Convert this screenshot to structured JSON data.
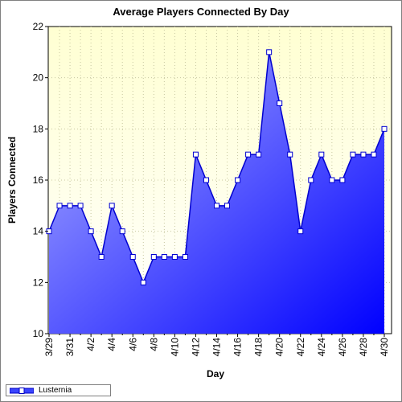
{
  "chart_data": {
    "type": "area",
    "title": "Average Players Connected By Day",
    "xlabel": "Day",
    "ylabel": "Players Connected",
    "ylim": [
      10,
      22
    ],
    "yticks": [
      10,
      12,
      14,
      16,
      18,
      20,
      22
    ],
    "grid": true,
    "legend_position": "bottom-left",
    "categories": [
      "3/29",
      "3/30",
      "3/31",
      "4/1",
      "4/2",
      "4/3",
      "4/4",
      "4/5",
      "4/6",
      "4/7",
      "4/8",
      "4/9",
      "4/10",
      "4/11",
      "4/12",
      "4/13",
      "4/14",
      "4/15",
      "4/16",
      "4/17",
      "4/18",
      "4/19",
      "4/20",
      "4/21",
      "4/22",
      "4/23",
      "4/24",
      "4/25",
      "4/26",
      "4/27",
      "4/28",
      "4/29",
      "4/30"
    ],
    "tick_labels": [
      "3/29",
      "3/31",
      "4/2",
      "4/4",
      "4/6",
      "4/8",
      "4/10",
      "4/12",
      "4/14",
      "4/16",
      "4/18",
      "4/20",
      "4/22",
      "4/24",
      "4/26",
      "4/28",
      "4/30"
    ],
    "series": [
      {
        "name": "Lusternia",
        "values": [
          14,
          15,
          15,
          15,
          14,
          13,
          15,
          14,
          13,
          12,
          13,
          13,
          13,
          13,
          17,
          16,
          15,
          15,
          16,
          17,
          17,
          21,
          19,
          17,
          14,
          16,
          17,
          16,
          16,
          17,
          17,
          17,
          18
        ],
        "color": "#0000ff"
      }
    ],
    "plot_background": "#ffffe0"
  }
}
